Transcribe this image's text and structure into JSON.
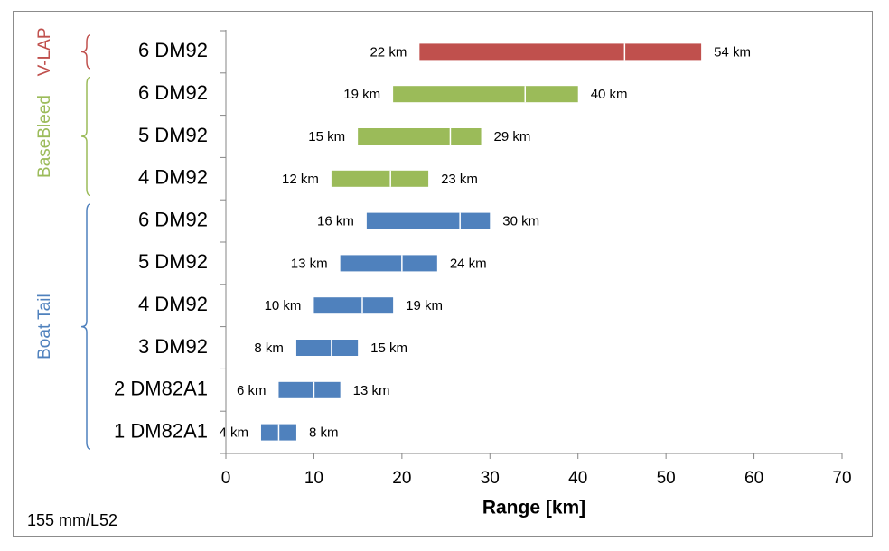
{
  "chart_data": {
    "type": "bar",
    "orientation": "horizontal",
    "style": "floating range bars with midpoint marker",
    "xlabel": "Range [km]",
    "xlim": [
      0,
      70
    ],
    "xticks": [
      0,
      10,
      20,
      30,
      40,
      50,
      60,
      70
    ],
    "grid": false,
    "categories": [
      "6 DM92",
      "6 DM92",
      "5 DM92",
      "4 DM92",
      "6 DM92",
      "5 DM92",
      "4 DM92",
      "3 DM92",
      "2 DM82A1",
      "1 DM82A1"
    ],
    "ranges": [
      {
        "group": "V-LAP",
        "min": 22,
        "max": 54,
        "min_label": "22 km",
        "max_label": "54 km",
        "mid": 45.3
      },
      {
        "group": "BaseBleed",
        "min": 19,
        "max": 40,
        "min_label": "19 km",
        "max_label": "40 km",
        "mid": 34
      },
      {
        "group": "BaseBleed",
        "min": 15,
        "max": 29,
        "min_label": "15 km",
        "max_label": "29 km",
        "mid": 25.5
      },
      {
        "group": "BaseBleed",
        "min": 12,
        "max": 23,
        "min_label": "12 km",
        "max_label": "23 km",
        "mid": 18.7
      },
      {
        "group": "Boat Tail",
        "min": 16,
        "max": 30,
        "min_label": "16 km",
        "max_label": "30 km",
        "mid": 26.6
      },
      {
        "group": "Boat Tail",
        "min": 13,
        "max": 24,
        "min_label": "13 km",
        "max_label": "24 km",
        "mid": 20
      },
      {
        "group": "Boat Tail",
        "min": 10,
        "max": 19,
        "min_label": "10 km",
        "max_label": "19 km",
        "mid": 15.5
      },
      {
        "group": "Boat Tail",
        "min": 8,
        "max": 15,
        "min_label": "8 km",
        "max_label": "15 km",
        "mid": 12
      },
      {
        "group": "Boat Tail",
        "min": 6,
        "max": 13,
        "min_label": "6 km",
        "max_label": "13 km",
        "mid": 10
      },
      {
        "group": "Boat Tail",
        "min": 4,
        "max": 8,
        "min_label": "4 km",
        "max_label": "8 km",
        "mid": 6
      }
    ],
    "groups": [
      {
        "name": "V-LAP",
        "color": "#c0504d",
        "first": 0,
        "last": 0
      },
      {
        "name": "BaseBleed",
        "color": "#9bbb59",
        "first": 1,
        "last": 3
      },
      {
        "name": "Boat Tail",
        "color": "#4f81bd",
        "first": 4,
        "last": 9
      }
    ]
  },
  "footnote": "155 mm/L52"
}
